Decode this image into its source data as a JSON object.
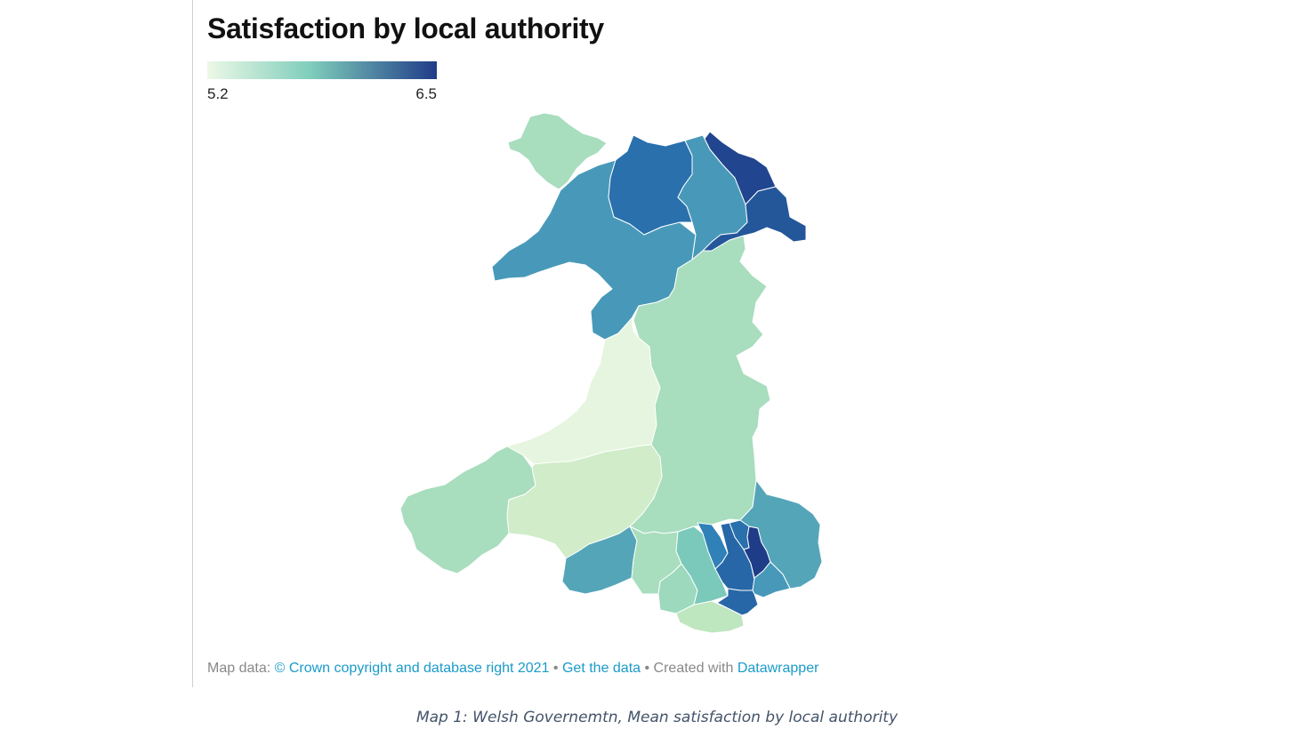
{
  "title": "Satisfaction by local authority",
  "legend": {
    "min_label": "5.2",
    "max_label": "6.5",
    "min_value": 5.2,
    "max_value": 6.5,
    "color_low": "#edf8e6",
    "color_mid": "#7fcdbb",
    "color_high": "#1f3c88"
  },
  "map": {
    "type": "choropleth",
    "region": "Wales",
    "regions": [
      {
        "id": "anglesey",
        "value": 5.6
      },
      {
        "id": "gwynedd",
        "value": 6.0
      },
      {
        "id": "conwy",
        "value": 6.2
      },
      {
        "id": "denbighshire",
        "value": 6.0
      },
      {
        "id": "flintshire",
        "value": 6.45
      },
      {
        "id": "wrexham",
        "value": 6.35
      },
      {
        "id": "powys",
        "value": 5.6
      },
      {
        "id": "ceredigion",
        "value": 5.25
      },
      {
        "id": "pembrokeshire",
        "value": 5.6
      },
      {
        "id": "carmarthenshire",
        "value": 5.4
      },
      {
        "id": "swansea",
        "value": 5.95
      },
      {
        "id": "neath-port-talbot",
        "value": 5.6
      },
      {
        "id": "bridgend",
        "value": 5.65
      },
      {
        "id": "vale-of-glamorgan",
        "value": 5.5
      },
      {
        "id": "rhondda-cynon-taf",
        "value": 5.8
      },
      {
        "id": "merthyr-tydfil",
        "value": 6.1
      },
      {
        "id": "caerphilly",
        "value": 6.25
      },
      {
        "id": "blaenau-gwent",
        "value": 6.2
      },
      {
        "id": "torfaen",
        "value": 6.5
      },
      {
        "id": "monmouthshire",
        "value": 5.95
      },
      {
        "id": "newport",
        "value": 6.0
      },
      {
        "id": "cardiff",
        "value": 6.25
      }
    ]
  },
  "footer": {
    "prefix": "Map data: ",
    "source_link": "© Crown copyright and database right 2021",
    "sep1": " • ",
    "data_link": "Get the data",
    "sep2": " • Created with ",
    "tool_link": "Datawrapper"
  },
  "caption": "Map 1: Welsh Governemtn, Mean satisfaction by local authority"
}
